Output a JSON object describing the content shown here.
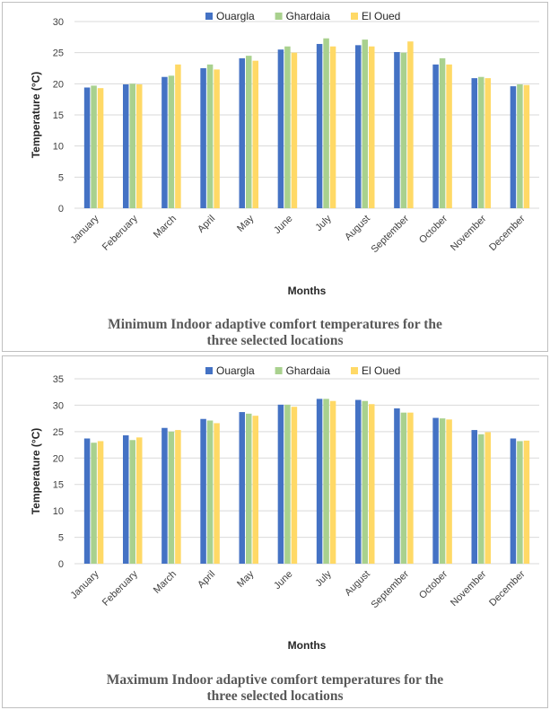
{
  "chart_data": [
    {
      "type": "bar",
      "caption_lines": [
        "Minimum Indoor adaptive comfort temperatures for the",
        "three selected locations"
      ],
      "xlabel": "Months",
      "ylabel": "Temperature (°C)",
      "ylim": [
        0,
        30
      ],
      "yticks": [
        0,
        5,
        10,
        15,
        20,
        25,
        30
      ],
      "grid": true,
      "legend_position": "top",
      "categories": [
        "January",
        "Feberuary",
        "March",
        "April",
        "May",
        "June",
        "July",
        "August",
        "September",
        "October",
        "November",
        "December"
      ],
      "series": [
        {
          "name": "Ouargla",
          "color": "#4472c4",
          "values": [
            19.4,
            19.9,
            21.1,
            22.5,
            24.1,
            25.5,
            26.4,
            26.2,
            25.1,
            23.1,
            20.9,
            19.6
          ]
        },
        {
          "name": "Ghardaia",
          "color": "#a9d18e",
          "values": [
            19.7,
            20.0,
            21.3,
            23.1,
            24.5,
            26.0,
            27.3,
            27.1,
            25.0,
            24.1,
            21.1,
            19.9
          ]
        },
        {
          "name": "El Oued",
          "color": "#ffd966",
          "values": [
            19.3,
            19.9,
            23.1,
            22.3,
            23.7,
            25.0,
            26.0,
            26.0,
            26.8,
            23.1,
            20.9,
            19.8
          ]
        }
      ]
    },
    {
      "type": "bar",
      "caption_lines": [
        "Maximum Indoor adaptive comfort temperatures for the",
        "three selected locations"
      ],
      "xlabel": "Months",
      "ylabel": "Temperature (°C)",
      "ylim": [
        0,
        35
      ],
      "yticks": [
        0,
        5,
        10,
        15,
        20,
        25,
        30,
        35
      ],
      "grid": true,
      "legend_position": "top",
      "categories": [
        "January",
        "Feberuary",
        "March",
        "April",
        "May",
        "June",
        "July",
        "August",
        "September",
        "October",
        "November",
        "December"
      ],
      "series": [
        {
          "name": "Ouargla",
          "color": "#4472c4",
          "values": [
            23.7,
            24.3,
            25.7,
            27.4,
            28.7,
            30.1,
            31.2,
            31.0,
            29.4,
            27.6,
            25.3,
            23.7
          ]
        },
        {
          "name": "Ghardaia",
          "color": "#a9d18e",
          "values": [
            22.9,
            23.4,
            25.0,
            27.1,
            28.4,
            30.1,
            31.2,
            30.8,
            28.6,
            27.5,
            24.5,
            23.2
          ]
        },
        {
          "name": "El Oued",
          "color": "#ffd966",
          "values": [
            23.2,
            23.9,
            25.3,
            26.6,
            28.0,
            29.7,
            30.8,
            30.2,
            28.6,
            27.3,
            24.9,
            23.3
          ]
        }
      ]
    }
  ]
}
